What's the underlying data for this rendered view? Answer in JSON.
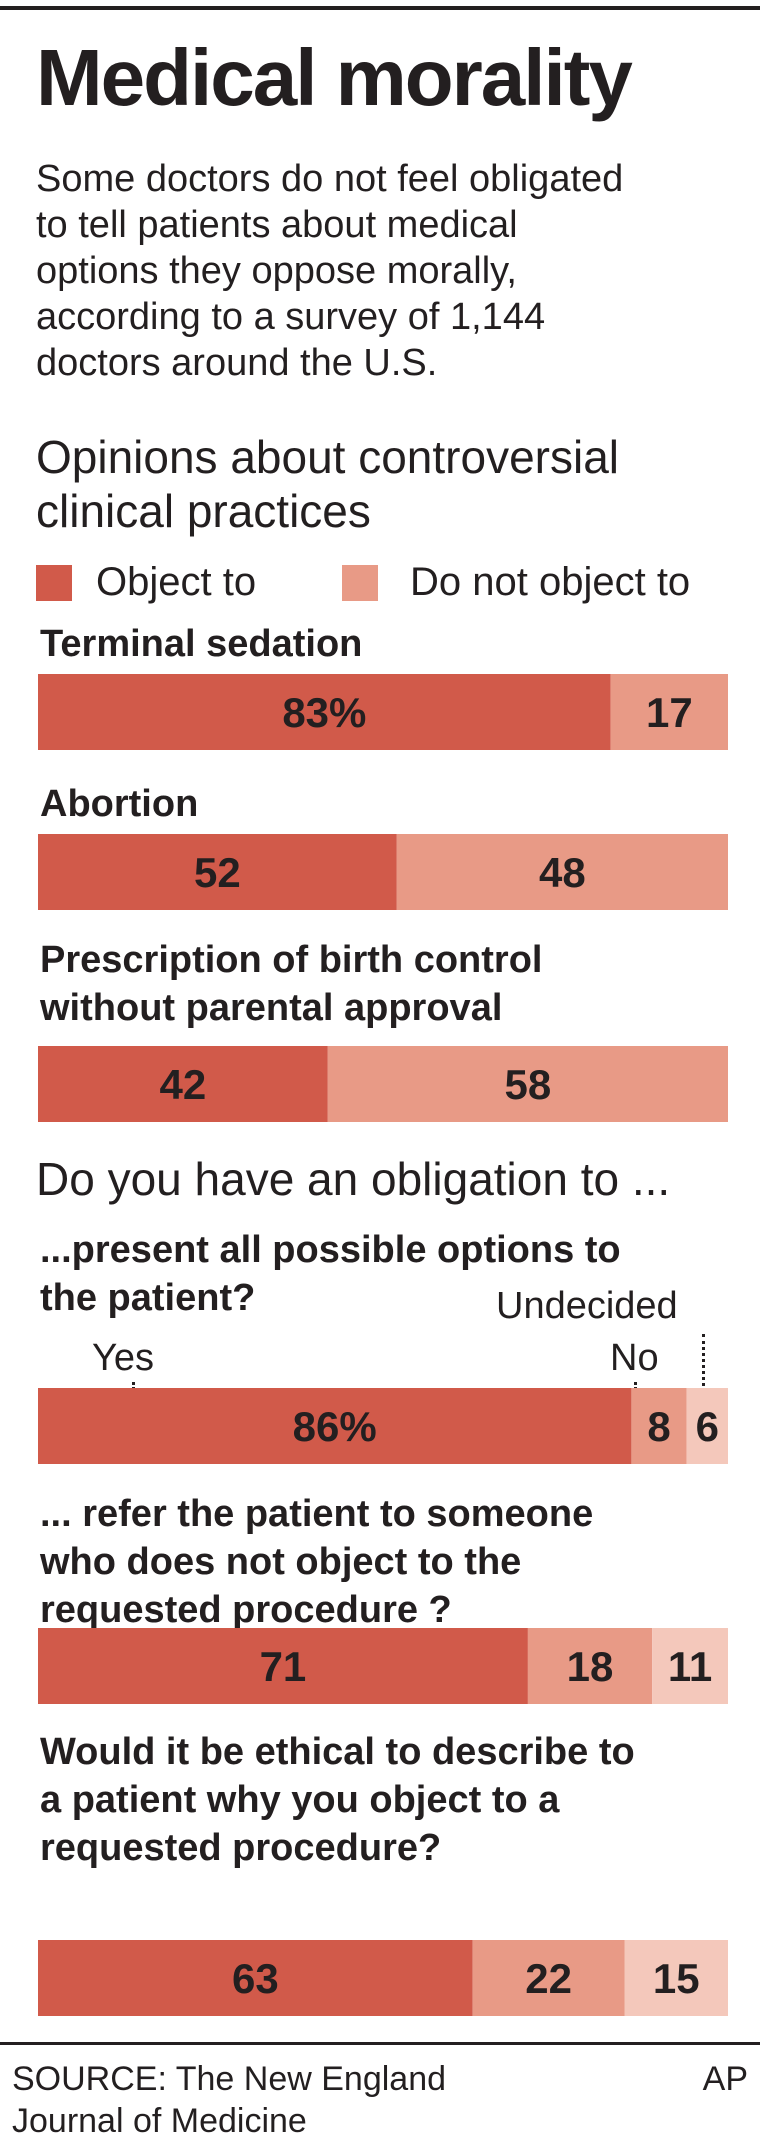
{
  "title": "Medical morality",
  "intro_lines": [
    "Some doctors do not feel obligated",
    "to tell patients about medical",
    "options they oppose morally,",
    "according to a survey of 1,144",
    "doctors around the U.S."
  ],
  "section1": {
    "lines": [
      "Opinions about controversial",
      "clinical practices"
    ]
  },
  "legend": {
    "object": "Object to",
    "not_object": "Do not object to"
  },
  "section2": {
    "heading": "Do you have an obligation to ..."
  },
  "annotations": {
    "yes": "Yes",
    "no": "No",
    "undecided": "Undecided"
  },
  "source_lines": [
    "SOURCE: The New England",
    "Journal of Medicine"
  ],
  "credit": "AP",
  "colors": {
    "dark": "#d15a4a",
    "mid": "#e89a86",
    "light": "#f4c8bb",
    "text": "#231f20"
  },
  "chart_data": [
    {
      "type": "bar",
      "orientation": "horizontal-stacked-100",
      "title": "Opinions about controversial clinical practices",
      "series": [
        {
          "name": "Object to"
        },
        {
          "name": "Do not object to"
        }
      ],
      "items": [
        {
          "label_lines": [
            "Terminal sedation"
          ],
          "values": [
            83,
            17
          ],
          "display": [
            "83%",
            "17"
          ]
        },
        {
          "label_lines": [
            "Abortion"
          ],
          "values": [
            52,
            48
          ],
          "display": [
            "52",
            "48"
          ]
        },
        {
          "label_lines": [
            "Prescription of birth control",
            "without parental approval"
          ],
          "values": [
            42,
            58
          ],
          "display": [
            "42",
            "58"
          ]
        }
      ]
    },
    {
      "type": "bar",
      "orientation": "horizontal-stacked-100",
      "title": "Do you have an obligation to ...",
      "series": [
        {
          "name": "Yes"
        },
        {
          "name": "No"
        },
        {
          "name": "Undecided"
        }
      ],
      "items": [
        {
          "label_lines": [
            "...present all possible options to",
            "the patient?"
          ],
          "values": [
            86,
            8,
            6
          ],
          "display": [
            "86%",
            "8",
            "6"
          ]
        },
        {
          "label_lines": [
            "... refer the patient to someone",
            "who does not object to the",
            "requested procedure ?"
          ],
          "values": [
            71,
            18,
            11
          ],
          "display": [
            "71",
            "18",
            "11"
          ]
        },
        {
          "label_lines": [
            "Would it be ethical to describe to",
            "a patient why you object to a",
            "requested procedure?"
          ],
          "values": [
            63,
            22,
            15
          ],
          "display": [
            "63",
            "22",
            "15"
          ]
        }
      ]
    }
  ]
}
